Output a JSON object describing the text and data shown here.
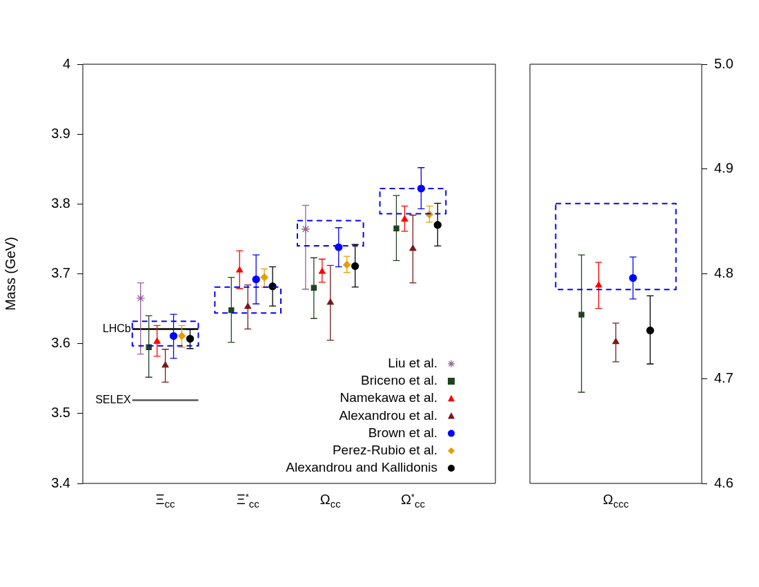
{
  "chart_data": [
    {
      "type": "scatter",
      "ylabel": "Mass (GeV)",
      "categories": [
        "Ξ$_{cc}$",
        "Ξ$^{*}$$_{cc}$",
        "Ω$_{cc}$",
        "Ω$^{*}$$_{cc}$"
      ],
      "ylim": [
        3.4,
        4.0
      ],
      "yticks": [
        3.4,
        3.5,
        3.6,
        3.7,
        3.8,
        3.9,
        4
      ],
      "grid": false,
      "legend": "bottom right",
      "series": [
        {
          "type": "bar",
          "color": "#0000ff",
          "line_style": "dashed",
          "base": [
            3.597,
            3.644,
            3.74,
            3.786
          ],
          "values": [
            0.035,
            0.037,
            0.036,
            0.036
          ]
        },
        {
          "name": "Liu et al.",
          "marker": "cross",
          "color": "#94609a",
          "values": [
            3.665,
            null,
            3.764,
            null
          ],
          "errors": [
            [
              3.585,
              3.687
            ],
            null,
            [
              3.678,
              3.798
            ],
            null
          ]
        },
        {
          "name": "Briceno et al.",
          "marker": "square",
          "color": "#214321",
          "values": [
            3.595,
            3.648,
            3.68,
            3.765
          ],
          "errors": [
            [
              3.552,
              3.64
            ],
            [
              3.602,
              3.695
            ],
            [
              3.636,
              3.723
            ],
            [
              3.719,
              3.812
            ]
          ]
        },
        {
          "name": "Namekawa et al.",
          "marker": "triangle",
          "color": "#ff0000",
          "values": [
            3.603,
            3.705,
            3.703,
            3.778
          ],
          "errors": [
            [
              3.582,
              3.626
            ],
            [
              3.679,
              3.733
            ],
            [
              3.688,
              3.721
            ],
            [
              3.761,
              3.797
            ]
          ]
        },
        {
          "name": "Alexandrou et al.",
          "marker": "triangle",
          "color": "#781a1a",
          "values": [
            3.569,
            3.653,
            3.659,
            3.736
          ],
          "errors": [
            [
              3.545,
              3.592
            ],
            [
              3.621,
              3.684
            ],
            [
              3.605,
              3.712
            ],
            [
              3.687,
              3.784
            ]
          ]
        },
        {
          "name": "Brown et al.",
          "marker": "circle",
          "color": "#0000ff",
          "values": [
            3.611,
            3.692,
            3.738,
            3.822
          ],
          "errors": [
            [
              3.579,
              3.642
            ],
            [
              3.657,
              3.727
            ],
            [
              3.71,
              3.766
            ],
            [
              3.793,
              3.852
            ]
          ]
        },
        {
          "name": "Perez-Rubio et al.",
          "marker": "diamond",
          "color": "#e69f00",
          "values": [
            3.611,
            3.695,
            3.713,
            3.785
          ],
          "errors": [
            [
              3.595,
              3.626
            ],
            [
              3.681,
              3.707
            ],
            [
              3.702,
              3.725
            ],
            [
              3.774,
              3.797
            ]
          ]
        },
        {
          "name": "Alexandrou and Kallidonis",
          "marker": "circle",
          "color": "#000000",
          "values": [
            3.607,
            3.682,
            3.711,
            3.77
          ],
          "errors": [
            [
              3.593,
              3.62
            ],
            [
              3.654,
              3.71
            ],
            [
              3.681,
              3.742
            ],
            [
              3.74,
              3.801
            ]
          ]
        }
      ],
      "ref_lines": [
        {
          "axis": "y",
          "value": 3.621,
          "label": "LHCb",
          "color": "#000000"
        },
        {
          "axis": "y",
          "value": 3.519,
          "label": "SELEX",
          "color": "#555555"
        }
      ]
    },
    {
      "type": "scatter",
      "categories": [
        "Ω$_{ccc}$"
      ],
      "ylim": [
        4.6,
        5.0
      ],
      "yticks": [
        4.6,
        4.7,
        4.8,
        4.9,
        {
          "value": 5,
          "label": "5.0"
        }
      ],
      "grid": false,
      "series": [
        {
          "type": "bar",
          "color": "#0000ff",
          "line_style": "dashed",
          "base": [
            4.785
          ],
          "values": [
            0.082
          ]
        },
        {
          "marker": "square",
          "color": "#214321",
          "values": [
            4.761
          ],
          "errors": [
            [
              4.687,
              4.818
            ]
          ]
        },
        {
          "marker": "triangle",
          "color": "#ff0000",
          "values": [
            4.789
          ],
          "errors": [
            [
              4.767,
              4.811
            ]
          ]
        },
        {
          "marker": "triangle",
          "color": "#781a1a",
          "values": [
            4.735
          ],
          "errors": [
            [
              4.716,
              4.753
            ]
          ]
        },
        {
          "marker": "circle",
          "color": "#0000ff",
          "values": [
            4.796
          ],
          "errors": [
            [
              4.776,
              4.816
            ]
          ]
        },
        {
          "marker": "circle",
          "color": "#000000",
          "values": [
            4.746
          ],
          "errors": [
            [
              4.714,
              4.779
            ]
          ]
        }
      ]
    }
  ]
}
